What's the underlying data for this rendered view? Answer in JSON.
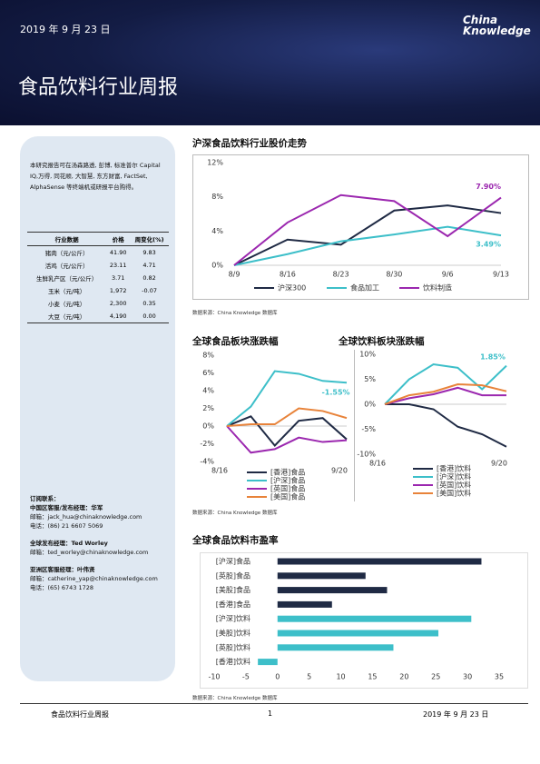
{
  "header": {
    "date": "2019 年 9 月 23 日",
    "logo_top": "China",
    "logo_bottom": "Knowledge",
    "title": "食品饮料行业周报"
  },
  "sidebar": {
    "intro": "本研究报告可在汤森路透, 彭博, 标准普尔 Capital IQ,万得, 同花顺, 大智慧, 东方财富, FactSet, AlphaSense 等终端机或研报平台购得。",
    "table": {
      "columns": [
        "行业数据",
        "价格",
        "周变化(%)"
      ],
      "rows": [
        [
          "猪肉（元/公斤）",
          "41.90",
          "9.83"
        ],
        [
          "活鸡（元/公斤）",
          "23.11",
          "4.71"
        ],
        [
          "生鲜乳产区（元/公斤）",
          "3.71",
          "0.82"
        ],
        [
          "玉米（元/吨）",
          "1,972",
          "-0.07"
        ],
        [
          "小麦（元/吨）",
          "2,300",
          "0.35"
        ],
        [
          "大豆（元/吨）",
          "4,190",
          "0.00"
        ]
      ]
    },
    "contacts": {
      "heading": "订阅联系：",
      "groups": [
        {
          "title": "中国区客服/发布经理：华军",
          "lines": [
            "邮箱：jack_hua@chinaknowledge.com",
            "电话：(86) 21 6607 5069"
          ]
        },
        {
          "title": "全球发布经理：Ted Worley",
          "lines": [
            "邮箱：ted_worley@chinaknowledge.com"
          ]
        },
        {
          "title": "亚洲区客服经理：叶伟贤",
          "lines": [
            "邮箱：catherine_yap@chinaknowledge.com",
            "电话：(65) 6743 1728"
          ]
        }
      ]
    }
  },
  "chart_data": [
    {
      "type": "line",
      "title": "沪深食品饮料行业股价走势",
      "source": "数据来源：China Knowledge 数据库",
      "categories": [
        "8/9",
        "8/16",
        "8/23",
        "8/30",
        "9/6",
        "9/13"
      ],
      "ylim": [
        0,
        12
      ],
      "yticks": [
        {
          "value": 0,
          "label": "0%"
        },
        {
          "value": 4,
          "label": "4%"
        },
        {
          "value": 8,
          "label": "8%"
        },
        {
          "value": 12,
          "label": "12%"
        }
      ],
      "series": [
        {
          "name": "沪深300",
          "color": "#1f2a44",
          "values": [
            0,
            3,
            2.4,
            6.4,
            7,
            6.1
          ]
        },
        {
          "name": "食品加工",
          "color": "#3dbfc9",
          "values": [
            0,
            1.3,
            2.8,
            3.6,
            4.5,
            3.49
          ],
          "value_labels": [
            null,
            null,
            null,
            null,
            null,
            "3.49%"
          ]
        },
        {
          "name": "饮料制造",
          "color": "#9b27af",
          "values": [
            0,
            5,
            8.2,
            7.5,
            3.4,
            7.9
          ],
          "value_labels": [
            null,
            null,
            null,
            null,
            null,
            "7.90%"
          ]
        }
      ]
    },
    {
      "type": "line",
      "title": "全球食品板块涨跌幅",
      "source": "数据来源：China Knowledge 数据库",
      "categories": [
        "8/16",
        null,
        null,
        null,
        null,
        "9/20"
      ],
      "ylim": [
        -4,
        8
      ],
      "yticks": [
        {
          "value": -4,
          "label": "-4%"
        },
        {
          "value": -2,
          "label": "-2%"
        },
        {
          "value": 0,
          "label": "0%"
        },
        {
          "value": 2,
          "label": "2%"
        },
        {
          "value": 4,
          "label": "4%"
        },
        {
          "value": 6,
          "label": "6%"
        },
        {
          "value": 8,
          "label": "8%"
        }
      ],
      "annotations": [
        {
          "text": "-1.55%",
          "color": "#3dbfc9"
        }
      ],
      "series": [
        {
          "name": "[香港]食品",
          "color": "#1f2a44",
          "values": [
            0,
            1.1,
            -2.2,
            0.6,
            0.9,
            -1.5
          ]
        },
        {
          "name": "[沪深]食品",
          "color": "#3dbfc9",
          "values": [
            0,
            2.2,
            6.2,
            5.9,
            5.1,
            4.9
          ]
        },
        {
          "name": "[英国]食品",
          "color": "#9b27af",
          "values": [
            0,
            -3,
            -2.6,
            -1.3,
            -1.8,
            -1.6
          ]
        },
        {
          "name": "[美国]食品",
          "color": "#e8833a",
          "values": [
            0,
            0.2,
            0.2,
            2,
            1.7,
            0.9
          ]
        }
      ]
    },
    {
      "type": "line",
      "title": "全球饮料板块涨跌幅",
      "categories": [
        "8/16",
        null,
        null,
        null,
        null,
        "9/20"
      ],
      "ylim": [
        -10,
        10
      ],
      "yticks": [
        {
          "value": -10,
          "label": "-10%"
        },
        {
          "value": -5,
          "label": "-5%"
        },
        {
          "value": 0,
          "label": "0%"
        },
        {
          "value": 5,
          "label": "5%"
        },
        {
          "value": 10,
          "label": "10%"
        }
      ],
      "annotations": [
        {
          "text": "1.85%",
          "color": "#3dbfc9"
        }
      ],
      "series": [
        {
          "name": "[香港]饮料",
          "color": "#1f2a44",
          "values": [
            0,
            0,
            -1,
            -4.5,
            -6,
            -8.5
          ]
        },
        {
          "name": "[沪深]饮料",
          "color": "#3dbfc9",
          "values": [
            0,
            5,
            8,
            7.3,
            3,
            7.7
          ]
        },
        {
          "name": "[英国]饮料",
          "color": "#9b27af",
          "values": [
            0,
            1.2,
            2,
            3.3,
            1.8,
            1.8
          ]
        },
        {
          "name": "[美国]饮料",
          "color": "#e8833a",
          "values": [
            0,
            1.8,
            2.5,
            4,
            3.8,
            2.6
          ]
        }
      ]
    },
    {
      "type": "hbar",
      "title": "全球食品饮料市盈率",
      "source": "数据来源：China Knowledge 数据库",
      "categories": [
        "[沪深]食品",
        "[英股]食品",
        "[美股]食品",
        "[香港]食品",
        "[沪深]饮料",
        "[美股]饮料",
        "[英股]饮料",
        "[香港]饮料"
      ],
      "values": [
        32.2,
        13.9,
        17.3,
        8.6,
        30.6,
        25.4,
        18.3,
        -3.1
      ],
      "colors": [
        "#1f2a44",
        "#1f2a44",
        "#1f2a44",
        "#1f2a44",
        "#3dbfc9",
        "#3dbfc9",
        "#3dbfc9",
        "#3dbfc9"
      ],
      "xlim": [
        -10,
        35
      ],
      "xticks": [
        -10,
        -5,
        0,
        5,
        10,
        15,
        20,
        25,
        30,
        35
      ]
    }
  ],
  "footer": {
    "left": "食品饮料行业周报",
    "page": "1",
    "right": "2019 年 9 月 23 日"
  }
}
